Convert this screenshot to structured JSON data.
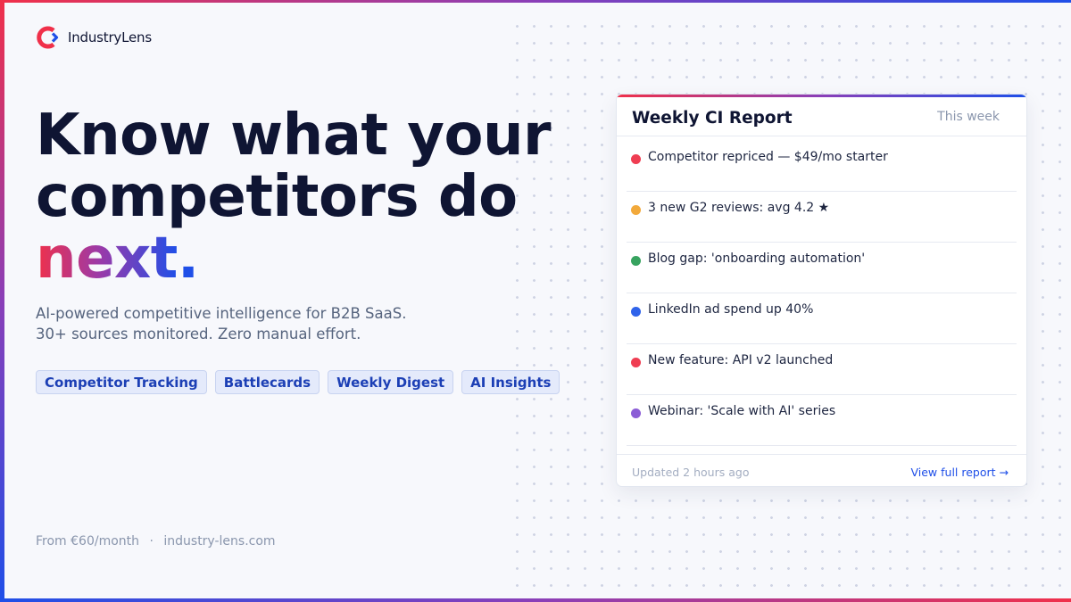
{
  "brand": {
    "name": "IndustryLens",
    "colors": {
      "red": "#f0304a",
      "purple": "#8a3fb8",
      "blue": "#1f4fe8",
      "navy": "#0f1533"
    }
  },
  "hero": {
    "headline_line1": "Know what your",
    "headline_line2": "competitors do",
    "headline_accent": "next",
    "headline_period": ".",
    "sub_line1": "AI-powered competitive intelligence for B2B SaaS.",
    "sub_line2": "30+ sources monitored. Zero manual effort."
  },
  "tags": [
    "Competitor Tracking",
    "Battlecards",
    "Weekly Digest",
    "AI Insights"
  ],
  "footer": {
    "price": "From €60/month",
    "separator": "·",
    "url": "industry-lens.com"
  },
  "report": {
    "title": "Weekly CI Report",
    "period": "This week",
    "items": [
      {
        "text": "Competitor repriced — $49/mo starter",
        "color": "#ef3d52"
      },
      {
        "text": "3 new G2 reviews: avg 4.2 ★",
        "color": "#f2a93b"
      },
      {
        "text": "Blog gap: 'onboarding automation'",
        "color": "#37a35f"
      },
      {
        "text": "LinkedIn ad spend up 40%",
        "color": "#2f63ea"
      },
      {
        "text": "New feature: API v2 launched",
        "color": "#ef3d52"
      },
      {
        "text": "Webinar: 'Scale with AI' series",
        "color": "#8b5dd6"
      }
    ],
    "updated": "Updated 2 hours ago",
    "link_label": "View full report →"
  }
}
